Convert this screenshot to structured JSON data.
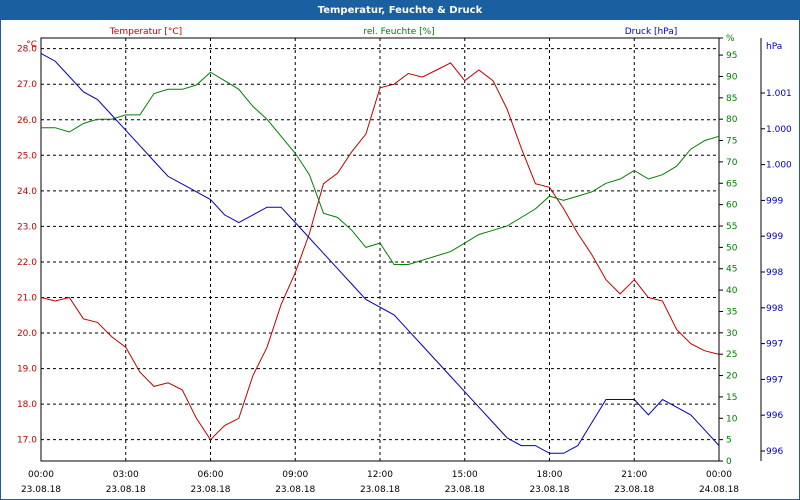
{
  "window": {
    "title": "Temperatur, Feuchte & Druck"
  },
  "colors": {
    "temperature": "#c00000",
    "humidity": "#008000",
    "pressure": "#0000c0",
    "titlebar": "#1a5fa0",
    "grid": "#000000"
  },
  "chart_data": {
    "type": "line",
    "title": "Temperatur, Feuchte & Druck",
    "grid": true,
    "x_axis": {
      "range": [
        "23.08.18 00:00",
        "24.08.18 00:00"
      ],
      "ticks": [
        {
          "time": "00:00",
          "date": "23.08.18"
        },
        {
          "time": "03:00",
          "date": "23.08.18"
        },
        {
          "time": "06:00",
          "date": "23.08.18"
        },
        {
          "time": "09:00",
          "date": "23.08.18"
        },
        {
          "time": "12:00",
          "date": "23.08.18"
        },
        {
          "time": "15:00",
          "date": "23.08.18"
        },
        {
          "time": "18:00",
          "date": "23.08.18"
        },
        {
          "time": "21:00",
          "date": "23.08.18"
        },
        {
          "time": "00:00",
          "date": "24.08.18"
        }
      ]
    },
    "axes": {
      "temperature": {
        "unit": "°C",
        "range": [
          16.4,
          28.3
        ],
        "ticks": [
          "17.0",
          "18.0",
          "19.0",
          "20.0",
          "21.0",
          "22.0",
          "23.0",
          "24.0",
          "25.0",
          "26.0",
          "27.0",
          "28.0"
        ]
      },
      "humidity": {
        "unit": "%",
        "range": [
          0,
          99
        ],
        "ticks": [
          "0",
          "5",
          "10",
          "15",
          "20",
          "25",
          "30",
          "35",
          "40",
          "45",
          "50",
          "55",
          "60",
          "65",
          "70",
          "75",
          "80",
          "85",
          "90",
          "95",
          "%"
        ]
      },
      "pressure": {
        "unit": "hPa",
        "range": [
          995.8,
          1001.3
        ],
        "ticks": [
          "996",
          "996",
          "997",
          "997",
          "998",
          "998",
          "999",
          "999",
          "1.000",
          "1.000",
          "1.001"
        ]
      }
    },
    "series": [
      {
        "name": "Temperatur [°C]",
        "axis": "temperature",
        "color": "#c00000",
        "x": [
          0,
          0.5,
          1,
          1.5,
          2,
          2.5,
          3,
          3.5,
          4,
          4.5,
          5,
          5.5,
          6,
          6.5,
          7,
          7.5,
          8,
          8.5,
          9,
          9.5,
          10,
          10.5,
          11,
          11.5,
          12,
          12.5,
          13,
          13.5,
          14,
          14.5,
          15,
          15.5,
          16,
          16.5,
          17,
          17.5,
          18,
          18.5,
          19,
          19.5,
          20,
          20.5,
          21,
          21.5,
          22,
          22.5,
          23,
          23.5,
          24
        ],
        "values": [
          21.0,
          20.9,
          21.0,
          20.4,
          20.3,
          19.9,
          19.6,
          18.9,
          18.5,
          18.6,
          18.4,
          17.6,
          17.0,
          17.4,
          17.6,
          18.8,
          19.6,
          20.8,
          21.7,
          22.8,
          24.2,
          24.5,
          25.1,
          25.6,
          26.9,
          27.0,
          27.3,
          27.2,
          27.4,
          27.6,
          27.1,
          27.4,
          27.1,
          26.3,
          25.2,
          24.2,
          24.1,
          23.5,
          22.8,
          22.2,
          21.5,
          21.1,
          21.5,
          21.0,
          20.9,
          20.1,
          19.7,
          19.5,
          19.4
        ]
      },
      {
        "name": "rel. Feuchte [%]",
        "axis": "humidity",
        "color": "#008000",
        "x": [
          0,
          0.5,
          1,
          1.5,
          2,
          2.5,
          3,
          3.5,
          4,
          4.5,
          5,
          5.5,
          6,
          6.5,
          7,
          7.5,
          8,
          8.5,
          9,
          9.5,
          10,
          10.5,
          11,
          11.5,
          12,
          12.5,
          13,
          13.5,
          14,
          14.5,
          15,
          15.5,
          16,
          16.5,
          17,
          17.5,
          18,
          18.5,
          19,
          19.5,
          20,
          20.5,
          21,
          21.5,
          22,
          22.5,
          23,
          23.5,
          24
        ],
        "values": [
          78,
          78,
          77,
          79,
          80,
          80,
          81,
          81,
          86,
          87,
          87,
          88,
          91,
          89,
          87,
          83,
          80,
          76,
          72,
          67,
          58,
          57,
          54,
          50,
          51,
          46,
          46,
          47,
          48,
          49,
          51,
          53,
          54,
          55,
          57,
          59,
          62,
          61,
          62,
          63,
          65,
          66,
          68,
          66,
          67,
          69,
          73,
          75,
          76
        ]
      },
      {
        "name": "Druck [hPa]",
        "axis": "pressure",
        "color": "#0000c0",
        "x": [
          0,
          0.5,
          1,
          1.5,
          2,
          2.5,
          3,
          3.5,
          4,
          4.5,
          5,
          5.5,
          6,
          6.5,
          7,
          7.5,
          8,
          8.5,
          9,
          9.5,
          10,
          10.5,
          11,
          11.5,
          12,
          12.5,
          13,
          13.5,
          14,
          14.5,
          15,
          15.5,
          16,
          16.5,
          17,
          17.5,
          18,
          18.5,
          19,
          19.5,
          20,
          20.5,
          21,
          21.5,
          22,
          22.5,
          23,
          23.5,
          24
        ],
        "values": [
          1001.1,
          1001.0,
          1000.8,
          1000.6,
          1000.5,
          1000.3,
          1000.1,
          999.9,
          999.7,
          999.5,
          999.4,
          999.3,
          999.2,
          999.0,
          998.9,
          999.0,
          999.1,
          999.1,
          998.9,
          998.7,
          998.5,
          998.3,
          998.1,
          997.9,
          997.8,
          997.7,
          997.5,
          997.3,
          997.1,
          996.9,
          996.7,
          996.5,
          996.3,
          996.1,
          996.0,
          996.0,
          995.9,
          995.9,
          996.0,
          996.3,
          996.6,
          996.6,
          996.6,
          996.4,
          996.6,
          996.5,
          996.4,
          996.2,
          996.0
        ]
      }
    ]
  }
}
